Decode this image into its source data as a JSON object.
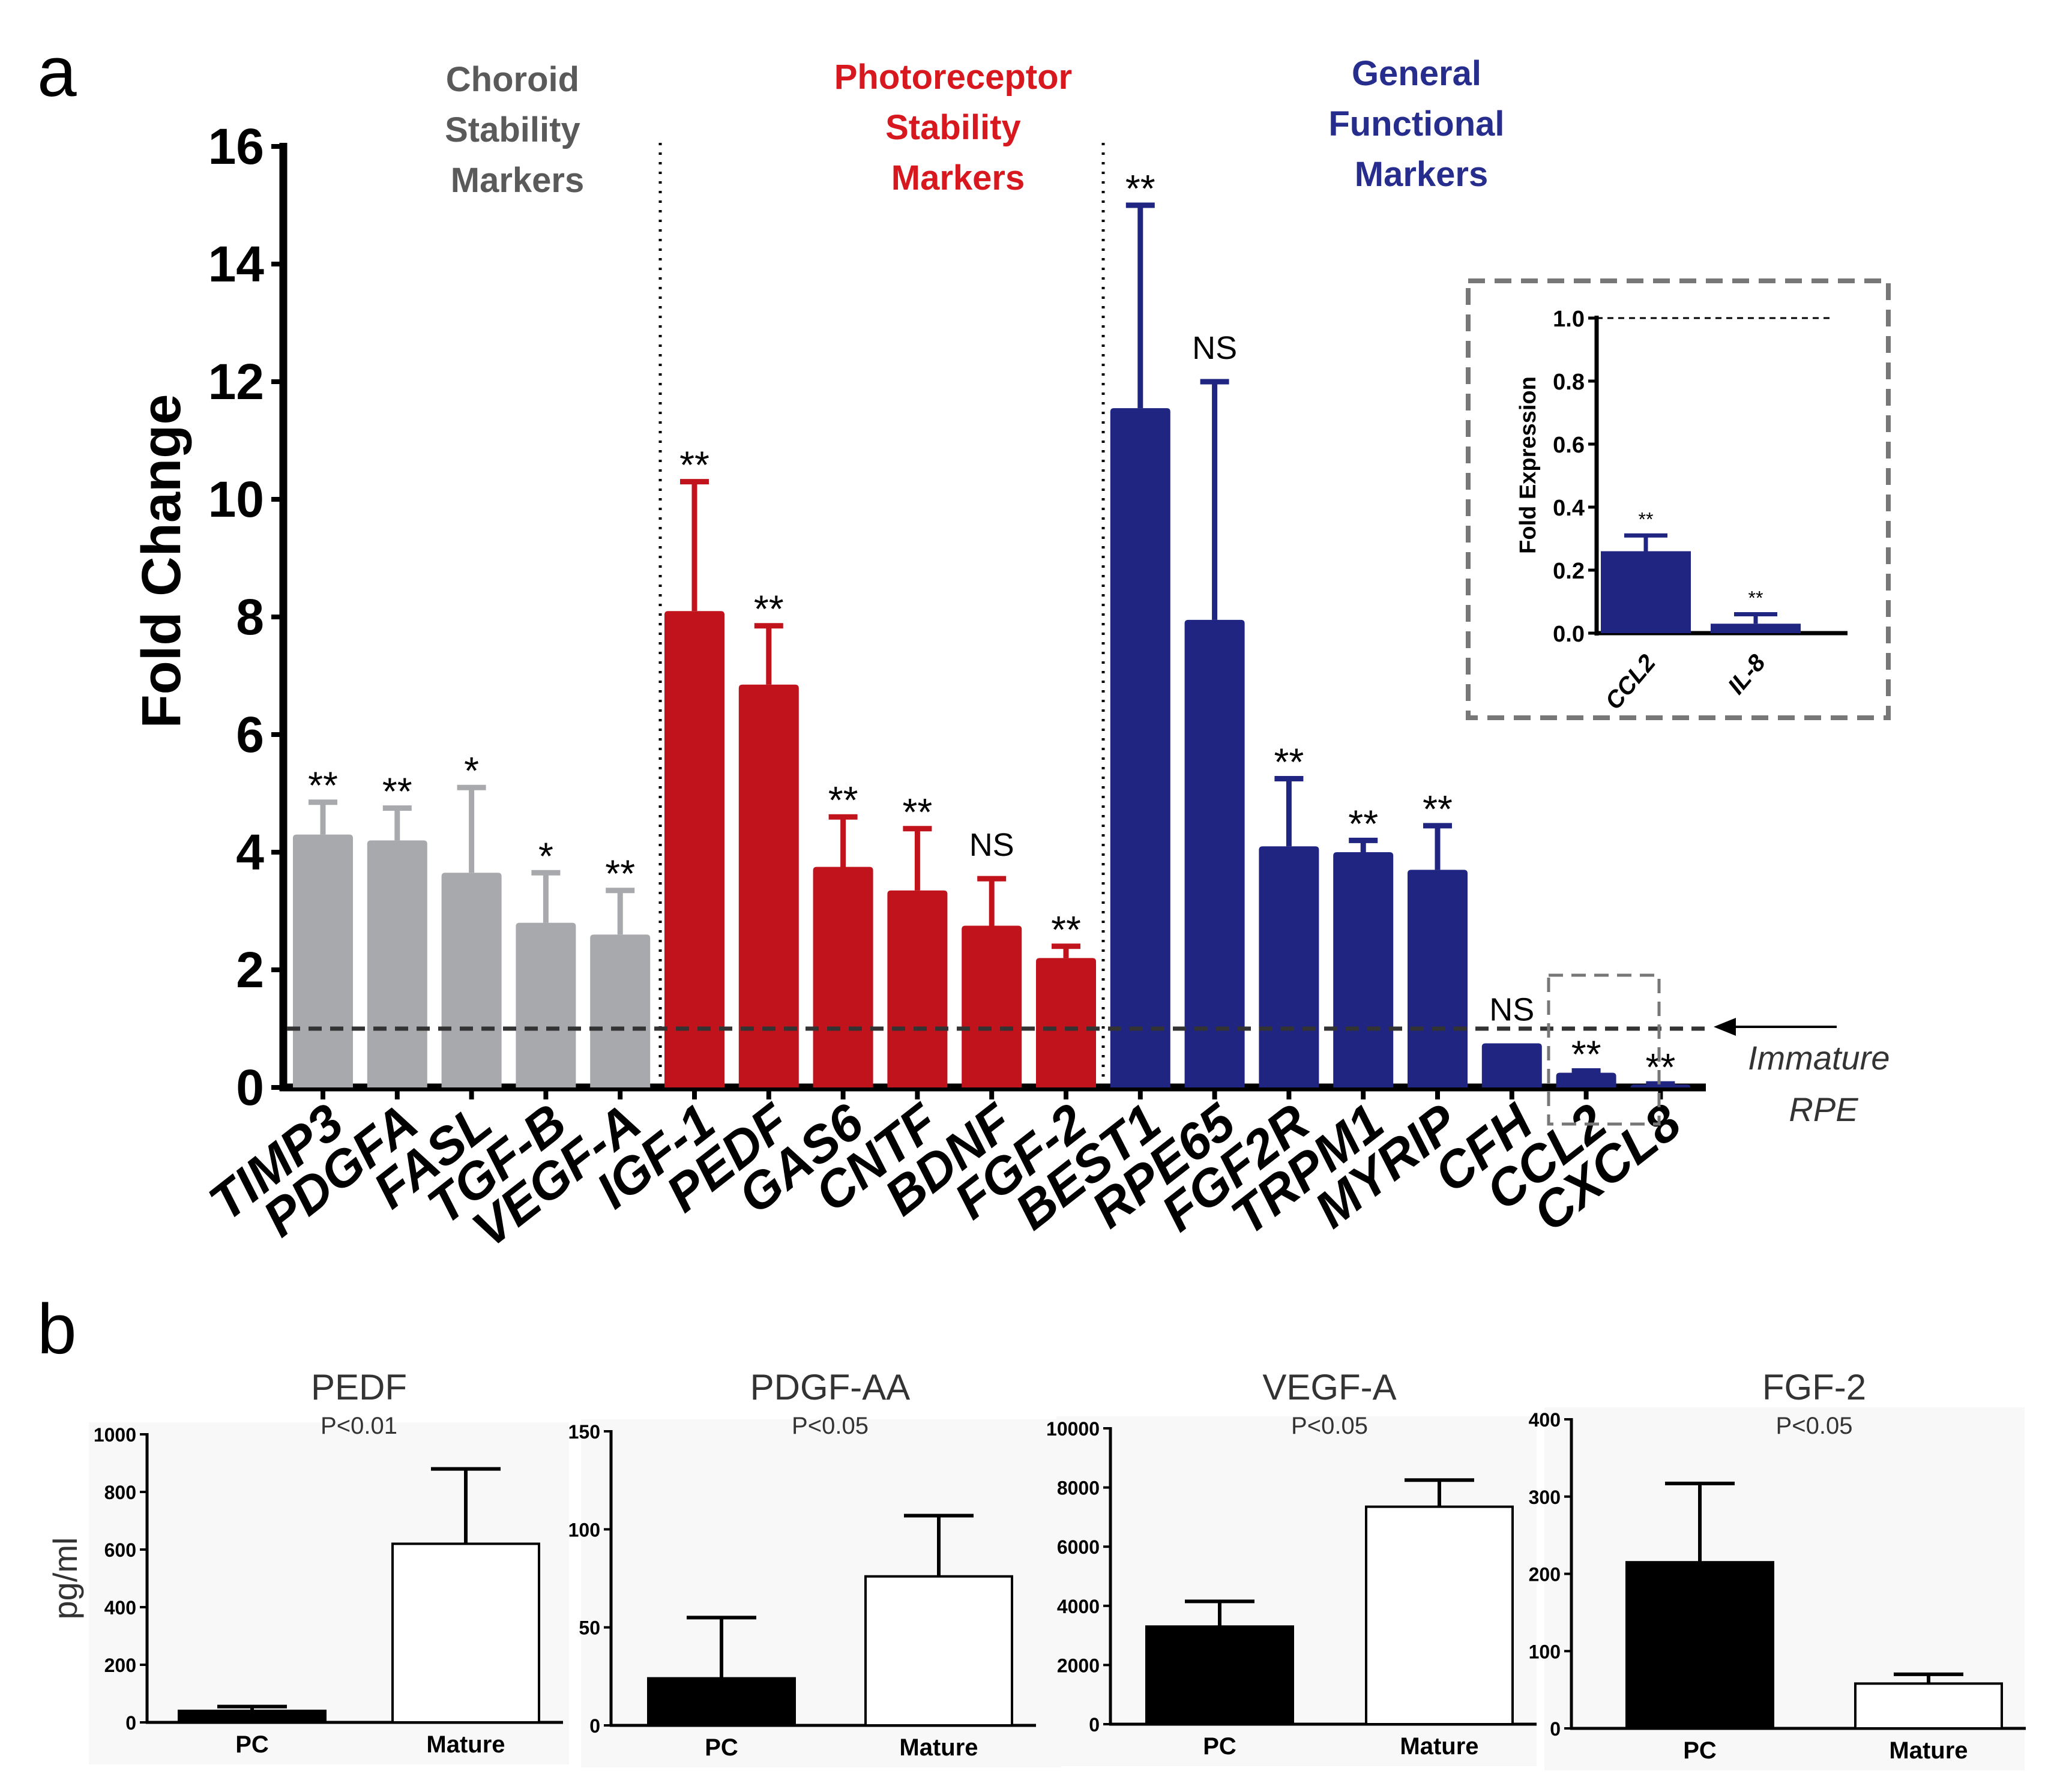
{
  "panel_a": {
    "label": "a",
    "groups": [
      {
        "lines": [
          "Choroid",
          "Stability",
          "Markers"
        ],
        "color": "#5a5a5a"
      },
      {
        "lines": [
          "Photoreceptor",
          "Stability",
          "Markers"
        ],
        "color": "#d7191f"
      },
      {
        "lines": [
          "General",
          "Functional",
          "Markers"
        ],
        "color": "#262d8c"
      }
    ],
    "reference_label": [
      "Immature",
      "RPE"
    ]
  },
  "panel_b": {
    "label": "b"
  },
  "colors": {
    "gray": "#a7a9ac",
    "red": "#c0131b",
    "blue": "#1f2580",
    "black": "#000000"
  },
  "chart_data": [
    {
      "id": "main",
      "type": "bar",
      "title": "",
      "xlabel": "",
      "ylabel": "Fold Change",
      "ylim": [
        0,
        16
      ],
      "yticks": [
        0,
        2,
        4,
        6,
        8,
        10,
        12,
        14,
        16
      ],
      "reference_line": 1,
      "categories": [
        "TIMP3",
        "PDGFA",
        "FASL",
        "TGF-B",
        "VEGF-A",
        "IGF-1",
        "PEDF",
        "GAS6",
        "CNTF",
        "BDNF",
        "FGF-2",
        "BEST1",
        "RPE65",
        "FGF2R",
        "TRPM1",
        "MYRIP",
        "CFH",
        "CCL2",
        "CXCL8"
      ],
      "values": [
        4.3,
        4.2,
        3.65,
        2.8,
        2.6,
        8.1,
        6.85,
        3.75,
        3.35,
        2.75,
        2.2,
        11.55,
        7.95,
        4.1,
        4.0,
        3.7,
        0.75,
        0.25,
        0.05
      ],
      "errors": [
        0.55,
        0.55,
        1.45,
        0.85,
        0.75,
        2.2,
        1.0,
        0.85,
        1.05,
        0.8,
        0.2,
        3.45,
        4.05,
        1.15,
        0.2,
        0.75,
        0.0,
        0.03,
        0.01
      ],
      "significance": [
        "**",
        "**",
        "*",
        "*",
        "**",
        "**",
        "**",
        "**",
        "**",
        "NS",
        "**",
        "**",
        "NS",
        "**",
        "**",
        "**",
        "NS",
        "**",
        "**"
      ],
      "group_index": [
        0,
        0,
        0,
        0,
        0,
        1,
        1,
        1,
        1,
        1,
        1,
        2,
        2,
        2,
        2,
        2,
        2,
        2,
        2
      ]
    },
    {
      "id": "inset",
      "type": "bar",
      "xlabel": "",
      "ylabel": "Fold Expression",
      "ylim": [
        0,
        1.0
      ],
      "yticks": [
        "0.0",
        "0.2",
        "0.4",
        "0.6",
        "0.8",
        "1.0"
      ],
      "reference_line": 1.0,
      "categories": [
        "CCL2",
        "IL-8"
      ],
      "values": [
        0.26,
        0.03
      ],
      "errors": [
        0.05,
        0.03
      ],
      "significance": [
        "**",
        "**"
      ]
    },
    {
      "id": "PEDF",
      "type": "bar",
      "title": "PEDF",
      "subtitle": "P<0.01",
      "ylabel": "pg/ml",
      "ylim": [
        0,
        1000
      ],
      "yticks": [
        0,
        200,
        400,
        600,
        800,
        1000
      ],
      "categories": [
        "PC",
        "Mature"
      ],
      "values": [
        40,
        620
      ],
      "errors": [
        15,
        260
      ]
    },
    {
      "id": "PDGF-AA",
      "type": "bar",
      "title": "PDGF-AA",
      "subtitle": "P<0.05",
      "ylabel": "",
      "ylim": [
        0,
        150
      ],
      "yticks": [
        0,
        50,
        100,
        150
      ],
      "categories": [
        "PC",
        "Mature"
      ],
      "values": [
        24,
        76
      ],
      "errors": [
        31,
        31
      ]
    },
    {
      "id": "VEGF-A",
      "type": "bar",
      "title": "VEGF-A",
      "subtitle": "P<0.05",
      "ylabel": "",
      "ylim": [
        0,
        10000
      ],
      "yticks": [
        0,
        2000,
        4000,
        6000,
        8000,
        10000
      ],
      "categories": [
        "PC",
        "Mature"
      ],
      "values": [
        3300,
        7350
      ],
      "errors": [
        850,
        900
      ]
    },
    {
      "id": "FGF-2",
      "type": "bar",
      "title": "FGF-2",
      "subtitle": "P<0.05",
      "ylabel": "",
      "ylim": [
        0,
        400
      ],
      "yticks": [
        0,
        100,
        200,
        300,
        400
      ],
      "categories": [
        "PC",
        "Mature"
      ],
      "values": [
        215,
        58
      ],
      "errors": [
        102,
        12
      ]
    }
  ]
}
